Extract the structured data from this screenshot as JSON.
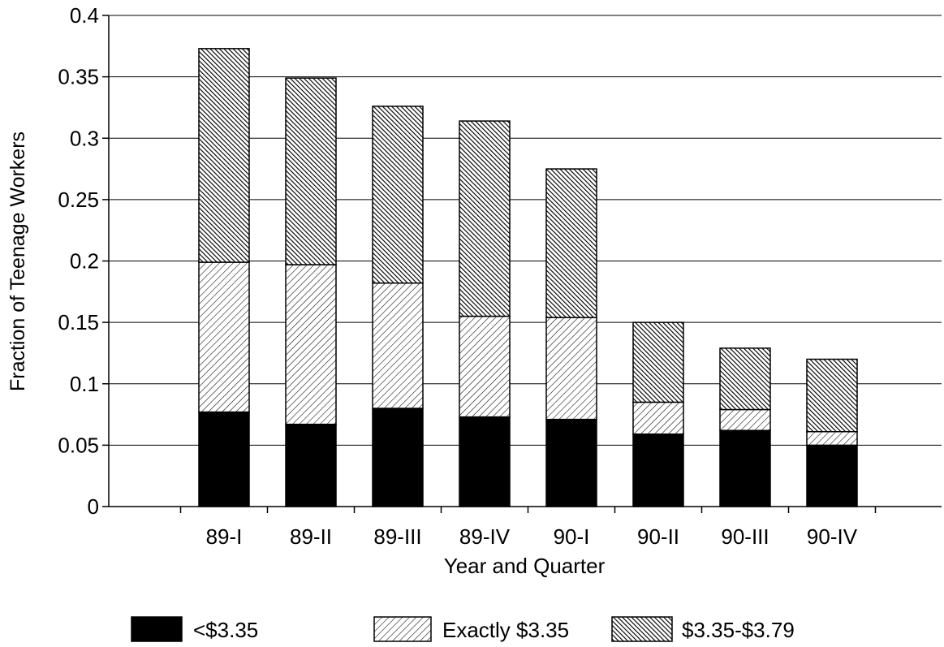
{
  "chart_data": {
    "type": "bar",
    "stacked": true,
    "title": "",
    "xlabel": "Year and Quarter",
    "ylabel": "Fraction of Teenage Workers",
    "ylim": [
      0,
      0.4
    ],
    "yticks": [
      "0",
      "0.05",
      "0.1",
      "0.15",
      "0.2",
      "0.25",
      "0.3",
      "0.35",
      "0.4"
    ],
    "grid": true,
    "legend_position": "bottom",
    "categories": [
      "89-I",
      "89-II",
      "89-III",
      "89-IV",
      "90-I",
      "90-II",
      "90-III",
      "90-IV"
    ],
    "series": [
      {
        "name": "<$3.35",
        "pattern": "solid",
        "color": "#000000",
        "values": [
          0.077,
          0.067,
          0.08,
          0.073,
          0.071,
          0.059,
          0.062,
          0.05
        ]
      },
      {
        "name": "Exactly $3.35",
        "pattern": "light-diagonal",
        "color": "#000000",
        "values": [
          0.122,
          0.13,
          0.102,
          0.082,
          0.083,
          0.026,
          0.017,
          0.011
        ]
      },
      {
        "name": "$3.35-$3.79",
        "pattern": "dense-diagonal",
        "color": "#000000",
        "values": [
          0.174,
          0.152,
          0.144,
          0.159,
          0.121,
          0.065,
          0.05,
          0.059
        ]
      }
    ]
  }
}
